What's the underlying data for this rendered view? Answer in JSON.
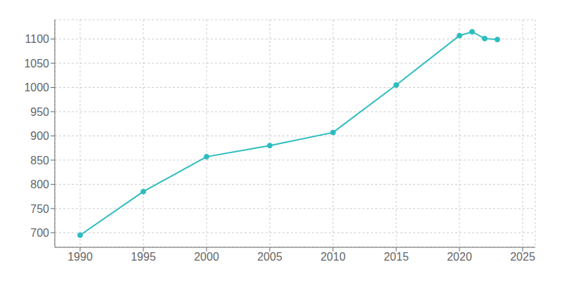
{
  "chart_data": {
    "type": "line",
    "x": [
      1990,
      1995,
      2000,
      2005,
      2010,
      2015,
      2020,
      2021,
      2022,
      2023
    ],
    "values": [
      695,
      785,
      857,
      880,
      907,
      1005,
      1107,
      1115,
      1101,
      1099
    ],
    "color": "#2bbdbf",
    "marker": "circle",
    "xlim": [
      1988,
      2026
    ],
    "xticks": [
      1990,
      1995,
      2000,
      2005,
      2010,
      2015,
      2020,
      2025
    ],
    "ylim": [
      670,
      1140
    ],
    "yticks": [
      700,
      750,
      800,
      850,
      900,
      950,
      1000,
      1050,
      1100
    ],
    "grid": true
  }
}
